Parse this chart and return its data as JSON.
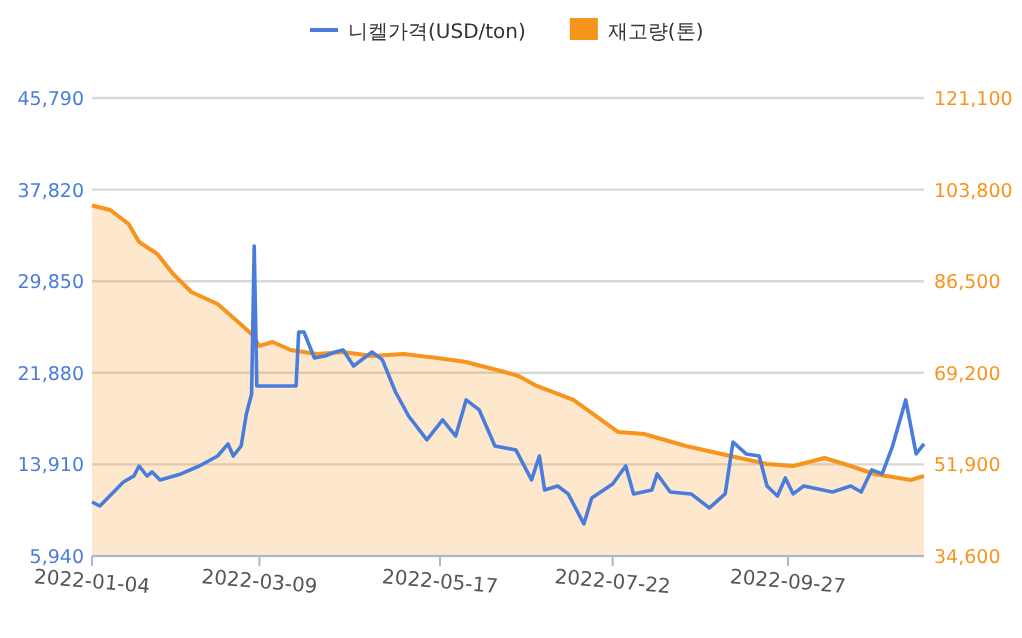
{
  "chart_data": {
    "type": "line",
    "legend": "top",
    "grid": "y",
    "xlim": [
      "2022-01-04",
      "2022-11-18"
    ],
    "xticks": [
      "2022-01-04",
      "2022-03-09",
      "2022-05-17",
      "2022-07-22",
      "2022-09-27"
    ],
    "ylim": [
      5940,
      45790
    ],
    "yticks": [
      {
        "value": 5940,
        "label": "5,940"
      },
      {
        "value": 13910,
        "label": "13,910"
      },
      {
        "value": 21880,
        "label": "21,880"
      },
      {
        "value": 29850,
        "label": "29,850"
      },
      {
        "value": 37820,
        "label": "37,820"
      },
      {
        "value": 45790,
        "label": "45,790"
      }
    ],
    "y2lim": [
      34600,
      121100
    ],
    "y2ticks": [
      {
        "value": 34600,
        "label": "34,600"
      },
      {
        "value": 51900,
        "label": "51,900"
      },
      {
        "value": 69200,
        "label": "69,200"
      },
      {
        "value": 86500,
        "label": "86,500"
      },
      {
        "value": 103800,
        "label": "103,800"
      },
      {
        "value": 121100,
        "label": "121,100"
      }
    ],
    "series": [
      {
        "name": "재고량(톤)",
        "type": "area",
        "axis": "y2",
        "color": "#f7941d",
        "x": [
          "2022-01-04",
          "2022-01-11",
          "2022-01-18",
          "2022-01-22",
          "2022-01-29",
          "2022-02-04",
          "2022-02-11",
          "2022-02-21",
          "2022-02-28",
          "2022-03-06",
          "2022-03-09",
          "2022-03-14",
          "2022-03-21",
          "2022-03-31",
          "2022-04-10",
          "2022-04-21",
          "2022-05-03",
          "2022-05-16",
          "2022-05-27",
          "2022-06-11",
          "2022-06-16",
          "2022-06-23",
          "2022-07-07",
          "2022-07-24",
          "2022-08-03",
          "2022-08-19",
          "2022-09-05",
          "2022-09-19",
          "2022-09-29",
          "2022-10-11",
          "2022-10-21",
          "2022-10-30",
          "2022-11-13",
          "2022-11-18"
        ],
        "values": [
          100800,
          99950,
          97300,
          93900,
          91640,
          87860,
          84460,
          82200,
          79180,
          76530,
          74270,
          75020,
          73510,
          72750,
          73130,
          72380,
          72750,
          72000,
          71240,
          69300,
          68600,
          66710,
          64070,
          58020,
          57650,
          55380,
          53490,
          51980,
          51600,
          53110,
          51600,
          50090,
          48960,
          49720
        ]
      },
      {
        "name": "니켈가격(USD/ton)",
        "color": "#4a7ddb",
        "x": [
          "2022-01-04",
          "2022-01-07",
          "2022-01-10",
          "2022-01-13",
          "2022-01-16",
          "2022-01-20",
          "2022-01-22",
          "2022-01-25",
          "2022-01-27",
          "2022-01-30",
          "2022-02-07",
          "2022-02-14",
          "2022-02-21",
          "2022-02-25",
          "2022-02-27",
          "2022-03-02",
          "2022-03-04",
          "2022-03-06",
          "2022-03-07",
          "2022-03-08",
          "2022-03-23",
          "2022-03-24",
          "2022-03-26",
          "2022-03-30",
          "2022-04-03",
          "2022-04-07",
          "2022-04-10",
          "2022-04-14",
          "2022-04-21",
          "2022-04-25",
          "2022-04-30",
          "2022-05-05",
          "2022-05-12",
          "2022-05-18",
          "2022-05-23",
          "2022-05-27",
          "2022-06-01",
          "2022-06-07",
          "2022-06-15",
          "2022-06-21",
          "2022-06-24",
          "2022-06-26",
          "2022-07-01",
          "2022-07-05",
          "2022-07-11",
          "2022-07-14",
          "2022-07-22",
          "2022-07-27",
          "2022-07-30",
          "2022-08-06",
          "2022-08-08",
          "2022-08-13",
          "2022-08-21",
          "2022-08-28",
          "2022-09-03",
          "2022-09-06",
          "2022-09-11",
          "2022-09-16",
          "2022-09-19",
          "2022-09-23",
          "2022-09-26",
          "2022-09-29",
          "2022-10-03",
          "2022-10-14",
          "2022-10-21",
          "2022-10-25",
          "2022-10-29",
          "2022-11-02",
          "2022-11-06",
          "2022-11-11",
          "2022-11-15",
          "2022-11-18"
        ],
        "values": [
          10640,
          10290,
          10990,
          11690,
          12380,
          12900,
          13770,
          12900,
          13250,
          12560,
          13080,
          13770,
          14640,
          15690,
          14640,
          15510,
          18300,
          20040,
          32910,
          20730,
          20730,
          25430,
          25430,
          23170,
          23340,
          23690,
          23870,
          22470,
          23690,
          23000,
          20210,
          18120,
          16040,
          17780,
          16380,
          19520,
          18650,
          15510,
          15170,
          12560,
          14640,
          11690,
          12030,
          11340,
          8730,
          10990,
          12210,
          13770,
          11340,
          11690,
          13080,
          11510,
          11340,
          10120,
          11340,
          15860,
          14820,
          14640,
          12030,
          11160,
          12730,
          11340,
          12030,
          11510,
          12030,
          11510,
          13430,
          13080,
          15510,
          19520,
          14820,
          15690
        ]
      }
    ]
  }
}
